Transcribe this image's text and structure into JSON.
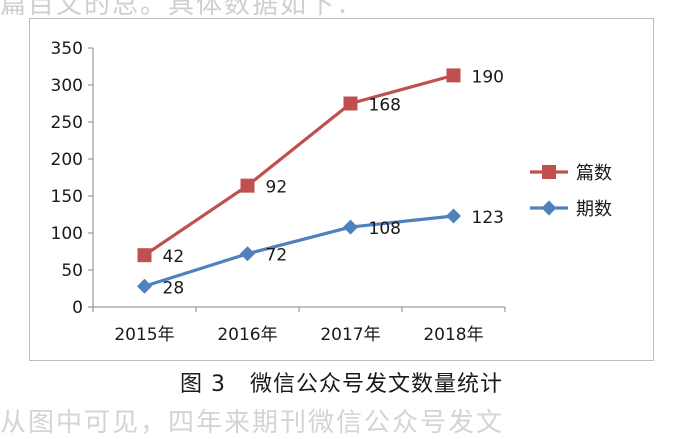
{
  "fragments": {
    "top": "篇目文的总。具体数据如下：",
    "bottom": "从图中可见，四年来期刊微信公众号发文"
  },
  "caption": {
    "number": "图 3",
    "text": "微信公众号发文数量统计"
  },
  "chart_data": {
    "type": "line",
    "categories": [
      "2015年",
      "2016年",
      "2017年",
      "2018年"
    ],
    "ylim": [
      0,
      350
    ],
    "yticks": [
      0,
      50,
      100,
      150,
      200,
      250,
      300,
      350
    ],
    "series": [
      {
        "name": "篇数",
        "values": [
          70,
          164,
          275,
          313
        ],
        "labels": [
          "42",
          "92",
          "168",
          "190"
        ],
        "color": "#c0504d",
        "marker": "square"
      },
      {
        "name": "期数",
        "values": [
          28,
          72,
          108,
          123
        ],
        "labels": [
          "28",
          "72",
          "108",
          "123"
        ],
        "color": "#4f81bd",
        "marker": "diamond"
      }
    ],
    "legend_position": "right",
    "grid": false
  }
}
